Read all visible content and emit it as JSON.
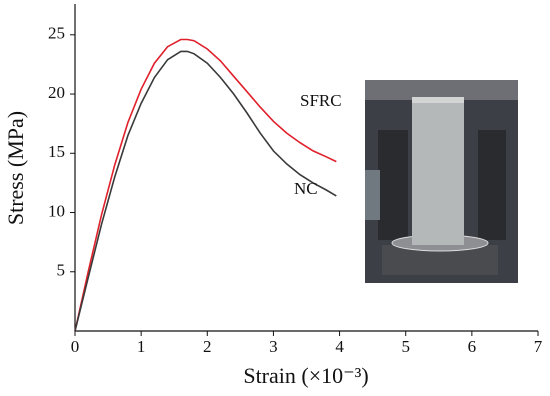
{
  "chart_data": {
    "type": "line",
    "x_label": "Strain (×10⁻³)",
    "y_label": "Stress (MPa)",
    "x": [
      0,
      0.2,
      0.4,
      0.6,
      0.8,
      1.0,
      1.2,
      1.4,
      1.6,
      1.7,
      1.8,
      2.0,
      2.2,
      2.4,
      2.6,
      2.8,
      3.0,
      3.2,
      3.4,
      3.6,
      3.8,
      3.95
    ],
    "series": [
      {
        "name": "SFRC",
        "color": "#e0202a",
        "values": [
          0,
          5,
          9.8,
          14,
          17.6,
          20.4,
          22.6,
          24.0,
          24.6,
          24.6,
          24.5,
          23.8,
          22.8,
          21.5,
          20.2,
          18.9,
          17.7,
          16.7,
          15.9,
          15.2,
          14.7,
          14.3
        ]
      },
      {
        "name": "NC",
        "color": "#3a3a3a",
        "values": [
          0,
          4.5,
          9,
          13,
          16.5,
          19.2,
          21.4,
          22.9,
          23.6,
          23.6,
          23.4,
          22.6,
          21.4,
          20.0,
          18.4,
          16.7,
          15.2,
          14.1,
          13.2,
          12.5,
          11.9,
          11.4
        ]
      }
    ],
    "xlim": [
      0,
      7
    ],
    "xticks": [
      0,
      1,
      2,
      3,
      4,
      5,
      6,
      7
    ],
    "ylim": [
      0,
      27.6
    ],
    "yticks": [
      5,
      10,
      15,
      20,
      25
    ]
  }
}
